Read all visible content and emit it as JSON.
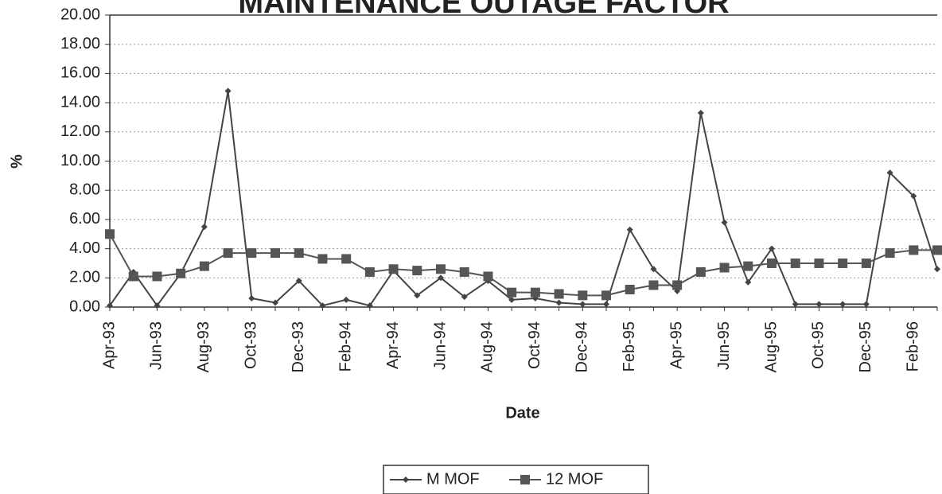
{
  "chart_data": {
    "type": "line",
    "title": "MAINTENANCE OUTAGE FACTOR",
    "x_label": "Date",
    "y_label": "%",
    "categories": [
      "Apr-93",
      null,
      "Jun-93",
      null,
      "Aug-93",
      null,
      "Oct-93",
      null,
      "Dec-93",
      null,
      "Feb-94",
      null,
      "Apr-94",
      null,
      "Jun-94",
      null,
      "Aug-94",
      null,
      "Oct-94",
      null,
      "Dec-94",
      null,
      "Feb-95",
      null,
      "Apr-95",
      null,
      "Jun-95",
      null,
      "Aug-95",
      null,
      "Oct-95",
      null,
      "Dec-95",
      null,
      "Feb-96",
      null
    ],
    "series": [
      {
        "name": "M MOF",
        "color": "#444",
        "marker": "diamond",
        "values": [
          0.1,
          2.4,
          0.1,
          2.3,
          5.5,
          14.8,
          0.6,
          0.3,
          1.8,
          0.1,
          0.5,
          0.1,
          2.5,
          0.8,
          2.0,
          0.7,
          1.8,
          0.5,
          0.6,
          0.3,
          0.2,
          0.2,
          5.3,
          2.6,
          1.1,
          13.3,
          5.8,
          1.7,
          4.0,
          0.2,
          0.2,
          0.2,
          0.2,
          9.2,
          7.6,
          2.6
        ]
      },
      {
        "name": "12 MOF",
        "color": "#555",
        "marker": "square",
        "values": [
          5.0,
          2.1,
          2.1,
          2.3,
          2.8,
          3.7,
          3.7,
          3.7,
          3.7,
          3.3,
          3.3,
          2.4,
          2.6,
          2.5,
          2.6,
          2.4,
          2.1,
          1.0,
          1.0,
          0.9,
          0.8,
          0.8,
          1.2,
          1.5,
          1.5,
          2.4,
          2.7,
          2.8,
          3.0,
          3.0,
          3.0,
          3.0,
          3.0,
          3.7,
          3.9,
          3.9
        ]
      }
    ],
    "ylim": [
      0,
      20
    ],
    "yticks": [
      {
        "value": 0,
        "label": "0.00"
      },
      {
        "value": 2,
        "label": "2.00"
      },
      {
        "value": 4,
        "label": "4.00"
      },
      {
        "value": 6,
        "label": "6.00"
      },
      {
        "value": 8,
        "label": "8.00"
      },
      {
        "value": 10,
        "label": "10.00"
      },
      {
        "value": 12,
        "label": "12.00"
      },
      {
        "value": 14,
        "label": "14.00"
      },
      {
        "value": 16,
        "label": "16.00"
      },
      {
        "value": 18,
        "label": "18.00"
      },
      {
        "value": 20,
        "label": "20.00"
      }
    ],
    "grid": true,
    "legend": "bottom"
  }
}
